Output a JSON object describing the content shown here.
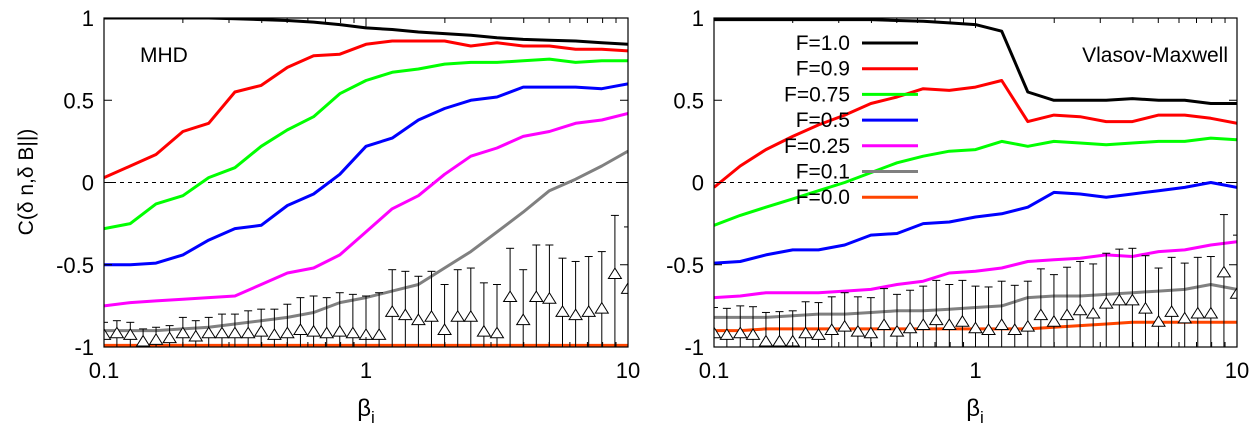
{
  "chart_data": [
    {
      "type": "line",
      "panel_label": "MHD",
      "xscale": "log",
      "xlim": [
        0.1,
        10
      ],
      "ylim": [
        -1,
        1
      ],
      "xticks": [
        "0.1",
        "1",
        "10"
      ],
      "yticks": [
        "-1",
        "-0.5",
        "0",
        "0.5",
        "1"
      ],
      "ylabel": "C(δ n,δ B||)",
      "xlabel": "βi",
      "zero_line": "dashed",
      "x": [
        0.1,
        0.126,
        0.158,
        0.2,
        0.251,
        0.316,
        0.398,
        0.501,
        0.631,
        0.794,
        1.0,
        1.259,
        1.585,
        1.995,
        2.512,
        3.162,
        3.981,
        5.012,
        6.31,
        7.943,
        10.0
      ],
      "series": [
        {
          "name": "F=1.0",
          "color": "#000000",
          "values": [
            1.0,
            1.0,
            1.0,
            1.0,
            1.0,
            0.995,
            0.99,
            0.985,
            0.975,
            0.96,
            0.94,
            0.93,
            0.915,
            0.905,
            0.895,
            0.88,
            0.87,
            0.865,
            0.86,
            0.85,
            0.84
          ]
        },
        {
          "name": "F=0.9",
          "color": "#ff0000",
          "values": [
            0.03,
            0.1,
            0.17,
            0.31,
            0.36,
            0.55,
            0.59,
            0.7,
            0.77,
            0.78,
            0.84,
            0.86,
            0.86,
            0.86,
            0.83,
            0.85,
            0.83,
            0.83,
            0.81,
            0.81,
            0.8
          ]
        },
        {
          "name": "F=0.75",
          "color": "#00ff00",
          "values": [
            -0.28,
            -0.25,
            -0.13,
            -0.08,
            0.03,
            0.09,
            0.22,
            0.32,
            0.4,
            0.54,
            0.62,
            0.67,
            0.69,
            0.72,
            0.73,
            0.73,
            0.74,
            0.75,
            0.73,
            0.74,
            0.74
          ]
        },
        {
          "name": "F=0.5",
          "color": "#0000ff",
          "values": [
            -0.5,
            -0.5,
            -0.49,
            -0.44,
            -0.35,
            -0.28,
            -0.26,
            -0.14,
            -0.07,
            0.05,
            0.22,
            0.27,
            0.38,
            0.45,
            0.5,
            0.52,
            0.58,
            0.58,
            0.58,
            0.57,
            0.6
          ]
        },
        {
          "name": "F=0.25",
          "color": "#ff00ff",
          "values": [
            -0.75,
            -0.73,
            -0.72,
            -0.71,
            -0.7,
            -0.69,
            -0.62,
            -0.55,
            -0.52,
            -0.44,
            -0.3,
            -0.16,
            -0.08,
            0.05,
            0.16,
            0.21,
            0.28,
            0.31,
            0.36,
            0.38,
            0.42
          ]
        },
        {
          "name": "F=0.1",
          "color": "#808080",
          "values": [
            -0.9,
            -0.9,
            -0.9,
            -0.89,
            -0.88,
            -0.86,
            -0.84,
            -0.82,
            -0.79,
            -0.73,
            -0.7,
            -0.66,
            -0.62,
            -0.52,
            -0.42,
            -0.3,
            -0.18,
            -0.05,
            0.02,
            0.1,
            0.19
          ]
        },
        {
          "name": "F=0.0",
          "color": "#ff4500",
          "values": [
            -0.99,
            -0.99,
            -0.99,
            -0.99,
            -0.99,
            -0.99,
            -0.99,
            -0.99,
            -0.99,
            -0.99,
            -0.99,
            -0.99,
            -0.99,
            -0.99,
            -0.99,
            -0.99,
            -0.99,
            -0.99,
            -0.99,
            -0.99,
            -0.99
          ]
        }
      ],
      "error_series": {
        "marker": "triangle-open",
        "x": [
          0.1,
          0.112,
          0.126,
          0.141,
          0.158,
          0.178,
          0.2,
          0.224,
          0.251,
          0.282,
          0.316,
          0.355,
          0.398,
          0.447,
          0.501,
          0.562,
          0.631,
          0.708,
          0.794,
          0.891,
          1.0,
          1.122,
          1.259,
          1.413,
          1.585,
          1.778,
          1.995,
          2.239,
          2.512,
          2.818,
          3.162,
          3.548,
          3.981,
          4.467,
          5.012,
          5.623,
          6.31,
          7.079,
          7.943,
          8.913,
          10.0
        ],
        "y": [
          -0.93,
          -0.92,
          -0.93,
          -0.97,
          -0.96,
          -0.95,
          -0.92,
          -0.94,
          -0.92,
          -0.92,
          -0.92,
          -0.92,
          -0.91,
          -0.93,
          -0.92,
          -0.9,
          -0.91,
          -0.92,
          -0.91,
          -0.92,
          -0.93,
          -0.93,
          -0.79,
          -0.81,
          -0.84,
          -0.82,
          -0.9,
          -0.82,
          -0.82,
          -0.91,
          -0.92,
          -0.7,
          -0.84,
          -0.7,
          -0.71,
          -0.79,
          -0.81,
          -0.79,
          -0.77,
          -0.56,
          -0.65
        ],
        "err": [
          0.08,
          0.08,
          0.08,
          0.08,
          0.08,
          0.08,
          0.1,
          0.1,
          0.1,
          0.12,
          0.12,
          0.14,
          0.14,
          0.16,
          0.18,
          0.2,
          0.22,
          0.22,
          0.24,
          0.24,
          0.24,
          0.26,
          0.26,
          0.27,
          0.27,
          0.28,
          0.28,
          0.29,
          0.3,
          0.3,
          0.3,
          0.3,
          0.31,
          0.32,
          0.33,
          0.33,
          0.33,
          0.34,
          0.35,
          0.36,
          0.38
        ]
      }
    },
    {
      "type": "line",
      "panel_label": "Vlasov-Maxwell",
      "xscale": "log",
      "xlim": [
        0.1,
        10
      ],
      "ylim": [
        -1,
        1
      ],
      "xticks": [
        "0.1",
        "1",
        "10"
      ],
      "yticks": [
        "-1",
        "-0.5",
        "0",
        "0.5",
        "1"
      ],
      "xlabel": "βi",
      "zero_line": "dashed",
      "legend": "top, upper-left of panel",
      "x": [
        0.1,
        0.126,
        0.158,
        0.2,
        0.251,
        0.316,
        0.398,
        0.501,
        0.631,
        0.794,
        1.0,
        1.259,
        1.585,
        1.995,
        2.512,
        3.162,
        3.981,
        5.012,
        6.31,
        7.943,
        10.0
      ],
      "series": [
        {
          "name": "F=1.0",
          "color": "#000000",
          "values": [
            0.99,
            0.99,
            0.99,
            0.99,
            0.99,
            0.99,
            0.99,
            0.985,
            0.98,
            0.97,
            0.96,
            0.92,
            0.55,
            0.5,
            0.5,
            0.5,
            0.51,
            0.5,
            0.5,
            0.48,
            0.48
          ]
        },
        {
          "name": "F=0.9",
          "color": "#ff0000",
          "values": [
            -0.03,
            0.1,
            0.2,
            0.28,
            0.35,
            0.41,
            0.48,
            0.52,
            0.57,
            0.56,
            0.58,
            0.62,
            0.37,
            0.41,
            0.4,
            0.37,
            0.37,
            0.41,
            0.41,
            0.39,
            0.36
          ]
        },
        {
          "name": "F=0.75",
          "color": "#00ff00",
          "values": [
            -0.26,
            -0.2,
            -0.15,
            -0.1,
            -0.05,
            0.0,
            0.06,
            0.12,
            0.16,
            0.19,
            0.2,
            0.25,
            0.22,
            0.25,
            0.24,
            0.23,
            0.24,
            0.25,
            0.25,
            0.27,
            0.26
          ]
        },
        {
          "name": "F=0.5",
          "color": "#0000ff",
          "values": [
            -0.49,
            -0.48,
            -0.44,
            -0.41,
            -0.41,
            -0.38,
            -0.32,
            -0.31,
            -0.25,
            -0.24,
            -0.21,
            -0.19,
            -0.15,
            -0.06,
            -0.07,
            -0.09,
            -0.07,
            -0.05,
            -0.03,
            0.0,
            -0.03
          ]
        },
        {
          "name": "F=0.25",
          "color": "#ff00ff",
          "values": [
            -0.7,
            -0.69,
            -0.67,
            -0.67,
            -0.67,
            -0.66,
            -0.65,
            -0.62,
            -0.6,
            -0.55,
            -0.54,
            -0.52,
            -0.48,
            -0.47,
            -0.46,
            -0.44,
            -0.45,
            -0.42,
            -0.41,
            -0.38,
            -0.36
          ]
        },
        {
          "name": "F=0.1",
          "color": "#808080",
          "values": [
            -0.82,
            -0.82,
            -0.82,
            -0.81,
            -0.8,
            -0.8,
            -0.79,
            -0.78,
            -0.78,
            -0.77,
            -0.76,
            -0.75,
            -0.7,
            -0.69,
            -0.69,
            -0.68,
            -0.67,
            -0.66,
            -0.65,
            -0.62,
            -0.65
          ]
        },
        {
          "name": "F=0.0",
          "color": "#ff4500",
          "values": [
            -0.9,
            -0.9,
            -0.89,
            -0.89,
            -0.89,
            -0.89,
            -0.89,
            -0.89,
            -0.89,
            -0.89,
            -0.89,
            -0.89,
            -0.89,
            -0.88,
            -0.87,
            -0.86,
            -0.85,
            -0.85,
            -0.85,
            -0.85,
            -0.85
          ]
        }
      ],
      "error_series": {
        "marker": "triangle-open",
        "x": [
          0.1,
          0.112,
          0.126,
          0.141,
          0.158,
          0.178,
          0.2,
          0.224,
          0.251,
          0.282,
          0.316,
          0.355,
          0.398,
          0.447,
          0.501,
          0.562,
          0.631,
          0.708,
          0.794,
          0.891,
          1.0,
          1.122,
          1.259,
          1.413,
          1.585,
          1.778,
          1.995,
          2.239,
          2.512,
          2.818,
          3.162,
          3.548,
          3.981,
          4.467,
          5.012,
          5.623,
          6.31,
          7.079,
          7.943,
          8.913,
          10.0
        ],
        "y": [
          -0.92,
          -0.93,
          -0.92,
          -0.93,
          -0.97,
          -0.97,
          -0.97,
          -0.92,
          -0.93,
          -0.9,
          -0.88,
          -0.91,
          -0.92,
          -0.87,
          -0.91,
          -0.89,
          -0.87,
          -0.84,
          -0.87,
          -0.85,
          -0.89,
          -0.9,
          -0.87,
          -0.9,
          -0.88,
          -0.81,
          -0.85,
          -0.81,
          -0.78,
          -0.8,
          -0.74,
          -0.72,
          -0.72,
          -0.77,
          -0.85,
          -0.79,
          -0.83,
          -0.8,
          -0.8,
          -0.55,
          -0.68
        ]
      }
    }
  ]
}
